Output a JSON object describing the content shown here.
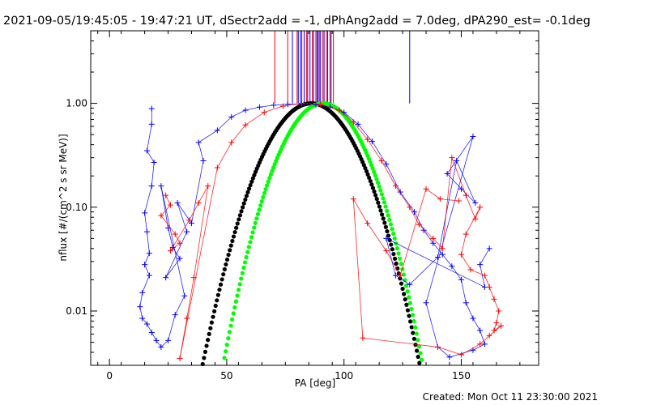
{
  "title": "2021-09-05/19:45:05 - 19:47:21 UT, dSectr2add = -1, dPhAng2add = 7.0deg, dPA290_est= -0.1deg",
  "footer": "Created: Mon Oct 11 23:30:00 2021",
  "colors": {
    "red": "#ff0000",
    "blue": "#0000ff",
    "black": "#000000",
    "green": "#00ff00",
    "background": "#ffffff",
    "axes": "#000000"
  },
  "chart_data": {
    "type": "scatter",
    "title": "2021-09-05/19:45:05 - 19:47:21 UT, dSectr2add = -1, dPhAng2add = 7.0deg, dPA290_est= -0.1deg",
    "xlabel": "PA [deg]",
    "ylabel": "nflux [#/(cm^2 s sr MeV)]",
    "xlim": [
      -8,
      183
    ],
    "ylim": [
      0.003,
      5.0
    ],
    "yscale": "log",
    "x_ticks": [
      0,
      50,
      100,
      150
    ],
    "x_tick_labels": [
      "0",
      "50",
      "100",
      "150"
    ],
    "y_ticks": [
      0.01,
      0.1,
      1.0
    ],
    "y_tick_labels": [
      "0.01",
      "0.10",
      "1.00"
    ],
    "grid": false,
    "legend": "none",
    "vertical_markers": {
      "y_from": 1.0,
      "red_x": [
        70.5,
        76,
        80,
        82,
        84,
        86.5,
        88,
        89.5,
        91,
        92.5,
        94,
        95.5
      ],
      "blue_x": [
        78,
        80.5,
        81.5,
        83,
        84.5,
        85.5,
        87,
        88.5,
        89,
        90,
        91.5,
        93,
        94.5,
        128
      ]
    },
    "fit_curves": [
      {
        "color": "black",
        "center": 86,
        "sigma": 13.6,
        "peak": 1.0,
        "x_range": [
          37,
          133
        ]
      },
      {
        "color": "green",
        "center": 91,
        "sigma": 12.5,
        "peak": 1.0,
        "x_range": [
          49,
          135
        ]
      }
    ],
    "series": [
      {
        "color": "blue",
        "points": [
          [
            18,
            0.89
          ],
          [
            18,
            0.63
          ],
          [
            16,
            0.35
          ],
          [
            19,
            0.27
          ],
          [
            18,
            0.16
          ],
          [
            15,
            0.088
          ],
          [
            16,
            0.058
          ],
          [
            17,
            0.036
          ],
          [
            15,
            0.028
          ],
          [
            17,
            0.022
          ],
          [
            14,
            0.015
          ],
          [
            13,
            0.011
          ],
          [
            14,
            0.0085
          ],
          [
            16,
            0.0075
          ],
          [
            18,
            0.0062
          ],
          [
            20,
            0.0052
          ],
          [
            22,
            0.0045
          ],
          [
            25,
            0.0052
          ],
          [
            28,
            0.0092
          ],
          [
            32,
            0.014
          ],
          [
            22,
            0.16
          ],
          [
            25,
            0.063
          ],
          [
            27,
            0.041
          ],
          [
            30,
            0.032
          ],
          [
            24,
            0.021
          ],
          [
            33,
            0.058
          ],
          [
            29,
            0.11
          ],
          [
            35,
            0.07
          ],
          [
            40,
            0.28
          ],
          [
            38,
            0.42
          ],
          [
            46,
            0.55
          ],
          [
            52,
            0.74
          ],
          [
            58,
            0.86
          ],
          [
            64,
            0.92
          ],
          [
            70,
            0.96
          ],
          [
            76,
            0.98
          ],
          [
            82,
            0.99
          ],
          [
            88,
            0.97
          ],
          [
            94,
            0.92
          ],
          [
            100,
            0.82
          ],
          [
            106,
            0.63
          ],
          [
            112,
            0.43
          ],
          [
            118,
            0.26
          ],
          [
            124,
            0.14
          ],
          [
            130,
            0.09
          ],
          [
            134,
            0.06
          ],
          [
            138,
            0.045
          ],
          [
            142,
            0.035
          ],
          [
            146,
            0.027
          ],
          [
            150,
            0.02
          ],
          [
            152,
            0.012
          ],
          [
            155,
            0.0085
          ],
          [
            158,
            0.0065
          ],
          [
            160,
            0.0048
          ],
          [
            155,
            0.0042
          ],
          [
            145,
            0.0036
          ],
          [
            140,
            0.0045
          ],
          [
            135,
            0.012
          ],
          [
            155,
            0.48
          ],
          [
            144,
            0.21
          ],
          [
            150,
            0.15
          ],
          [
            156,
            0.11
          ],
          [
            148,
            0.28
          ],
          [
            140,
            0.033
          ],
          [
            128,
            0.018
          ],
          [
            122,
            0.022
          ],
          [
            118,
            0.05
          ],
          [
            160,
            0.017
          ],
          [
            158,
            0.028
          ],
          [
            162,
            0.04
          ]
        ]
      },
      {
        "color": "red",
        "points": [
          [
            24,
            0.13
          ],
          [
            26,
            0.105
          ],
          [
            22,
            0.083
          ],
          [
            28,
            0.055
          ],
          [
            30,
            0.045
          ],
          [
            26,
            0.038
          ],
          [
            34,
            0.075
          ],
          [
            38,
            0.11
          ],
          [
            42,
            0.16
          ],
          [
            36,
            0.021
          ],
          [
            33,
            0.0085
          ],
          [
            30,
            0.0035
          ],
          [
            46,
            0.24
          ],
          [
            52,
            0.42
          ],
          [
            58,
            0.62
          ],
          [
            66,
            0.82
          ],
          [
            74,
            0.94
          ],
          [
            82,
            1.0
          ],
          [
            90,
            0.98
          ],
          [
            98,
            0.86
          ],
          [
            104,
            0.66
          ],
          [
            110,
            0.45
          ],
          [
            116,
            0.28
          ],
          [
            122,
            0.16
          ],
          [
            128,
            0.1
          ],
          [
            132,
            0.068
          ],
          [
            138,
            0.05
          ],
          [
            142,
            0.04
          ],
          [
            146,
            0.3
          ],
          [
            152,
            0.13
          ],
          [
            156,
            0.077
          ],
          [
            158,
            0.1
          ],
          [
            152,
            0.055
          ],
          [
            150,
            0.035
          ],
          [
            154,
            0.025
          ],
          [
            160,
            0.022
          ],
          [
            162,
            0.017
          ],
          [
            164,
            0.013
          ],
          [
            166,
            0.01
          ],
          [
            165,
            0.0077
          ],
          [
            164,
            0.0065
          ],
          [
            167,
            0.0072
          ],
          [
            162,
            0.0058
          ],
          [
            158,
            0.0048
          ],
          [
            150,
            0.0038
          ],
          [
            140,
            0.0045
          ],
          [
            108,
            0.0055
          ],
          [
            104,
            0.12
          ],
          [
            110,
            0.07
          ],
          [
            118,
            0.038
          ],
          [
            124,
            0.022
          ],
          [
            135,
            0.15
          ],
          [
            141,
            0.12
          ],
          [
            149,
            0.115
          ]
        ]
      }
    ]
  }
}
